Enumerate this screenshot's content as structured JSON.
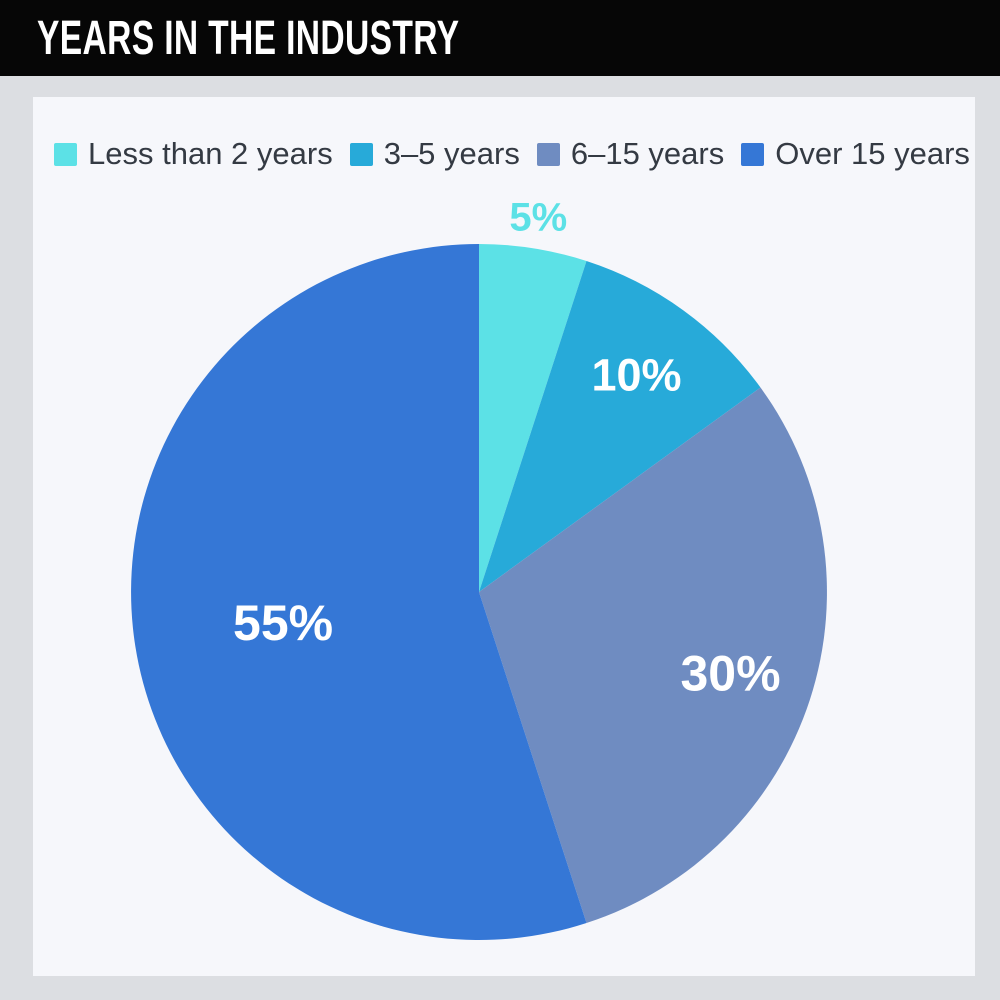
{
  "header": {
    "title": "YEARS IN THE INDUSTRY",
    "bg": "#060606",
    "text_color": "#ffffff"
  },
  "page": {
    "outer_bg": "#dcdee2",
    "card_bg": "#f6f7fb"
  },
  "legend": {
    "text_color": "#343a43",
    "position": "top"
  },
  "chart_data": {
    "type": "pie",
    "title": "YEARS IN THE INDUSTRY",
    "categories": [
      "Less than 2 years",
      "3–5 years",
      "6–15 years",
      "Over 15 years"
    ],
    "values": [
      5,
      10,
      30,
      55
    ],
    "unit": "%",
    "colors": [
      "#5ce1e6",
      "#27aad9",
      "#6f8cc1",
      "#3577d6"
    ],
    "labels": [
      "5%",
      "10%",
      "30%",
      "55%"
    ],
    "label_colors": [
      "#5ce1e6",
      "#ffffff",
      "#ffffff",
      "#ffffff"
    ],
    "label_radius_frac": [
      1.09,
      0.77,
      0.76,
      0.57
    ],
    "label_font_px": [
      40,
      45,
      50,
      50
    ],
    "start_angle_deg": 0,
    "direction": "clockwise",
    "legend_position": "top",
    "grid": false
  }
}
